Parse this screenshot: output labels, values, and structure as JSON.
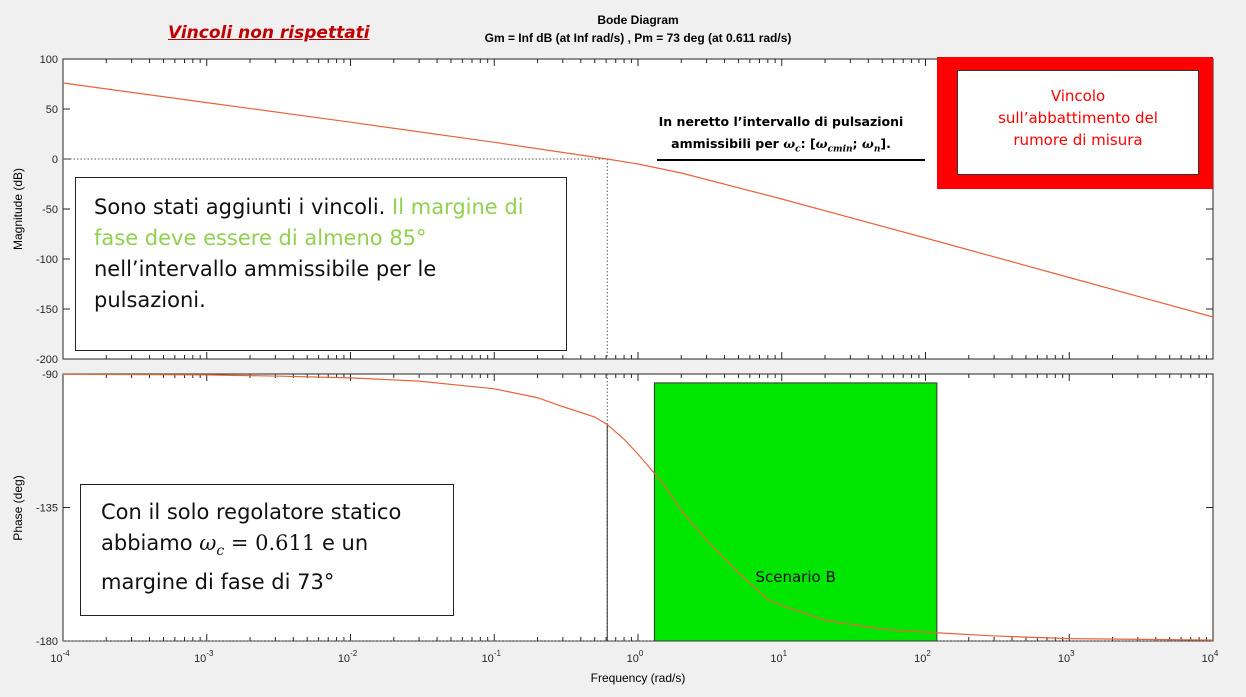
{
  "slide": {
    "heading": "Vincoli non rispettati",
    "heading_color": "#c00000"
  },
  "chart_data": {
    "type": "line",
    "title": "Bode Diagram",
    "subtitle": "Gm = Inf dB (at Inf rad/s) ,  Pm = 73 deg (at 0.611 rad/s)",
    "xlabel": "Frequency  (rad/s)",
    "xscale": "log",
    "xlim": [
      0.0001,
      10000
    ],
    "x_tick_exponents": [
      -4,
      -3,
      -2,
      -1,
      0,
      1,
      2,
      3,
      4
    ],
    "crossover_frequency": 0.611,
    "grid": false,
    "magnitude": {
      "ylabel": "Magnitude (dB)",
      "ylim": [
        -200,
        100
      ],
      "yticks": [
        100,
        50,
        0,
        -50,
        -100,
        -150,
        -200
      ],
      "series": [
        {
          "color": "#e8643c",
          "x": [
            0.0001,
            0.001,
            0.01,
            0.1,
            0.611,
            1,
            2,
            10,
            100,
            1000,
            10000
          ],
          "y": [
            76,
            56.4,
            36.8,
            16.7,
            0,
            -5,
            -14,
            -40,
            -79,
            -118.5,
            -158
          ]
        }
      ]
    },
    "phase": {
      "ylabel": "Phase (deg)",
      "ylim": [
        -180,
        -90
      ],
      "yticks": [
        -90,
        -135,
        -180
      ],
      "series": [
        {
          "color": "#e8643c",
          "x": [
            0.0001,
            0.001,
            0.003,
            0.01,
            0.03,
            0.1,
            0.2,
            0.3,
            0.5,
            0.611,
            0.8,
            1,
            1.5,
            2,
            3,
            5,
            8,
            10,
            20,
            50,
            100,
            300,
            1000,
            10000
          ],
          "y": [
            -90.1,
            -90.3,
            -90.7,
            -91.3,
            -92.4,
            -95,
            -98,
            -101,
            -104.5,
            -107,
            -112,
            -117,
            -127,
            -136,
            -146,
            -157,
            -166,
            -168,
            -173,
            -176,
            -177,
            -178.3,
            -179.2,
            -179.7
          ]
        }
      ]
    },
    "annotations": [
      {
        "x": 0.611,
        "text": "Scenario B",
        "x_start": 1.3,
        "x_end": 120,
        "phase_top": -93,
        "color": "#00e600"
      }
    ]
  },
  "annotations": {
    "interval_line1": "In neretto l’intervallo di pulsazioni",
    "interval_line2_prefix": "ammissibili per ",
    "interval_omega": "ω",
    "interval_sub_c": "c",
    "interval_colon": ": [",
    "interval_sub_cmin": "cmin",
    "interval_sep": ";  ",
    "interval_sub_n": "n",
    "interval_end": "].",
    "noise_line1": "Vincolo",
    "noise_line2": "sull’abbattimento del",
    "noise_line3": "rumore di misura",
    "noise_color": "#ff0000",
    "constraints_part1": "Sono stati aggiunti i vincoli. ",
    "constraints_part2": "Il margine di fase deve essere di almeno 85°",
    "constraints_part3": " nell’intervallo ammissibile per le pulsazioni.",
    "green_text_color": "#92d050",
    "static_part1": "Con il solo regolatore statico abbiamo ",
    "static_omega": "ω",
    "static_sub": "c",
    "static_value": " = 0.611",
    "static_part2": " e un margine di fase di 73°"
  }
}
